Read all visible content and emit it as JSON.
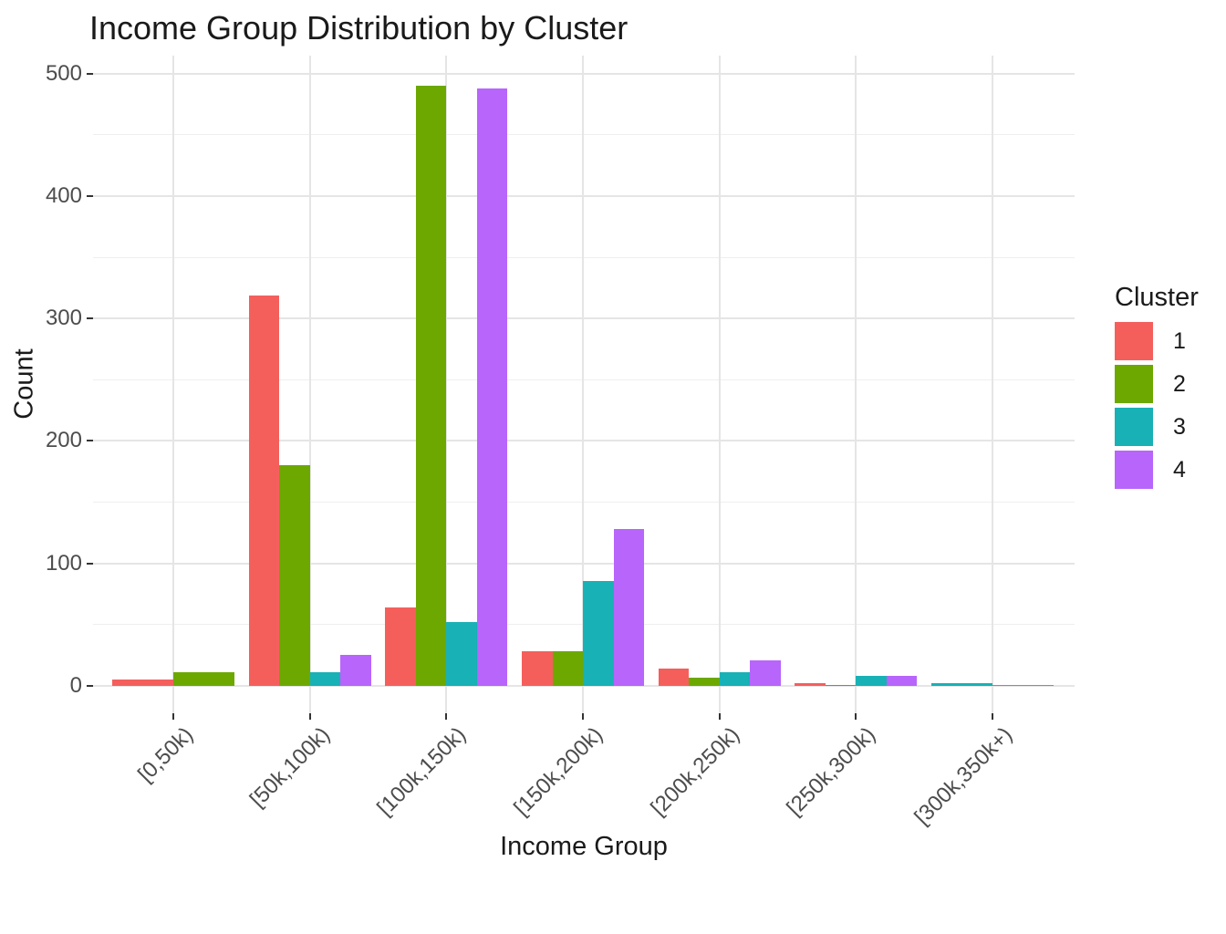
{
  "chart_data": {
    "type": "bar",
    "bar_layout": "dodge",
    "title": "Income Group Distribution by Cluster",
    "xlabel": "Income Group",
    "ylabel": "Count",
    "legend_title": "Cluster",
    "legend_position": "right",
    "categories": [
      "[0,50k)",
      "[50k,100k)",
      "[100k,150k)",
      "[150k,200k)",
      "[200k,250k)",
      "[250k,300k)",
      "[300k,350k+)"
    ],
    "series": [
      {
        "name": "1",
        "color": "#F45F5C",
        "values": [
          5,
          319,
          64,
          28,
          14,
          2,
          null
        ]
      },
      {
        "name": "2",
        "color": "#6CA800",
        "values": [
          11,
          180,
          490,
          28,
          7,
          1,
          null
        ]
      },
      {
        "name": "3",
        "color": "#18B1B6",
        "values": [
          null,
          11,
          52,
          86,
          11,
          8,
          2
        ]
      },
      {
        "name": "4",
        "color": "#B765FB",
        "values": [
          null,
          25,
          488,
          128,
          21,
          8,
          1
        ]
      }
    ],
    "ylim": [
      0,
      500
    ],
    "yticks": [
      0,
      100,
      200,
      300,
      400,
      500
    ],
    "minor_gridline_step": 50,
    "grid": {
      "major_color": "#E5E5E5",
      "minor_color": "#EFEFEF"
    },
    "background": "#FFFFFF",
    "text_colors": {
      "titles": "#1A1A1A",
      "tick_labels": "#4D4D4D"
    }
  }
}
